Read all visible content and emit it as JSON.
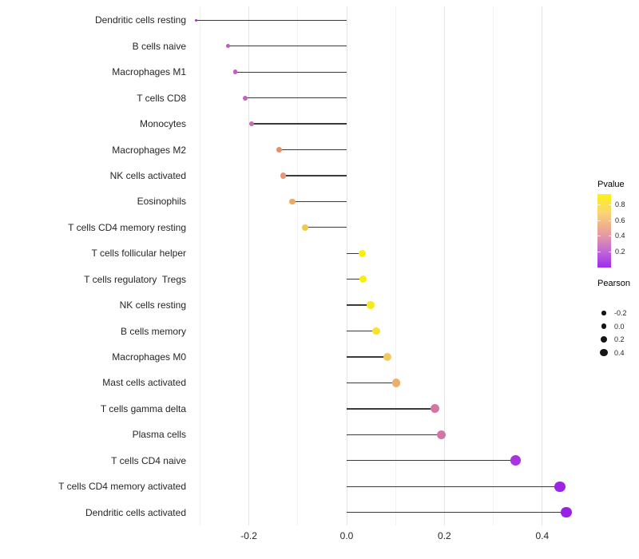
{
  "chart_data": {
    "type": "scatter",
    "variant": "horizontal lollipop (stem + dot), immune cell correlation plot",
    "title": "",
    "xlabel": "",
    "ylabel": "",
    "categories": [
      "Dendritic cells resting",
      "B cells naive",
      "Macrophages M1",
      "T cells CD8",
      "Monocytes",
      "Macrophages M2",
      "NK cells activated",
      "Eosinophils",
      "T cells CD4 memory resting",
      "T cells follicular helper",
      "T cells regulatory  Tregs",
      "NK cells resting",
      "B cells memory",
      "Macrophages M0",
      "Mast cells activated",
      "T cells gamma delta",
      "Plasma cells",
      "T cells CD4 naive",
      "T cells CD4 memory activated",
      "Dendritic cells activated"
    ],
    "series": [
      {
        "name": "Pearson",
        "values": [
          -0.308,
          -0.243,
          -0.228,
          -0.207,
          -0.194,
          -0.138,
          -0.13,
          -0.111,
          -0.085,
          0.032,
          0.034,
          0.049,
          0.06,
          0.084,
          0.101,
          0.181,
          0.194,
          0.346,
          0.436,
          0.449
        ]
      },
      {
        "name": "Pvalue (approx, encoded by dot color)",
        "values": [
          0.15,
          0.28,
          0.29,
          0.31,
          0.33,
          0.52,
          0.55,
          0.62,
          0.7,
          0.88,
          0.88,
          0.84,
          0.81,
          0.7,
          0.62,
          0.38,
          0.37,
          0.12,
          0.05,
          0.04
        ]
      }
    ],
    "point_colors": [
      "#9c35cd",
      "#c358c2",
      "#c45dbd",
      "#c763b6",
      "#cb69ae",
      "#e4906f",
      "#e59876",
      "#ecac60",
      "#f0c94c",
      "#fbee0c",
      "#fbee0c",
      "#f8e91d",
      "#f7e232",
      "#f2c95e",
      "#ecae6a",
      "#d277a5",
      "#d474a8",
      "#a833e0",
      "#9d24e6",
      "#9a20e8"
    ],
    "x_ticks": [
      -0.2,
      0,
      0.2,
      0.4
    ],
    "x_tick_labels": [
      "-0.2",
      "0.0",
      "0.2",
      "0.4"
    ],
    "x_minor_gridlines": [
      -0.3,
      -0.1,
      0.1,
      0.3
    ],
    "xlim": [
      -0.35,
      0.49
    ],
    "grid": "vertical gridlines only (major + minor), white background, no axis lines",
    "legend_position": "right",
    "legend": {
      "color": {
        "title": "Pvalue",
        "domain": [
          0,
          0.93
        ],
        "ticks": [
          {
            "label": "0.8",
            "value": 0.8
          },
          {
            "label": "0.6",
            "value": 0.6
          },
          {
            "label": "0.4",
            "value": 0.4
          },
          {
            "label": "0.2",
            "value": 0.2
          }
        ],
        "gradient_top_to_bottom": [
          {
            "pos": 0,
            "color": "#fdf216"
          },
          {
            "pos": 0.25,
            "color": "#fbd573"
          },
          {
            "pos": 0.45,
            "color": "#efae8d"
          },
          {
            "pos": 0.6,
            "color": "#e191ac"
          },
          {
            "pos": 0.78,
            "color": "#c167d8"
          },
          {
            "pos": 1,
            "color": "#9d2ceb"
          }
        ]
      },
      "size": {
        "title": "Pearson",
        "entries": [
          {
            "label": "-0.2",
            "value": -0.2
          },
          {
            "label": "0.0",
            "value": 0
          },
          {
            "label": "0.2",
            "value": 0.2
          },
          {
            "label": "0.4",
            "value": 0.4
          }
        ],
        "dot_color": "#151515"
      }
    }
  },
  "style_colors": {
    "background": "#ffffff",
    "stem": "#3a3a3a",
    "grid_major": "#e4e4e4",
    "grid_minor": "#f2f2f2",
    "axis_text": "#262626",
    "legend_text": "#262626"
  }
}
